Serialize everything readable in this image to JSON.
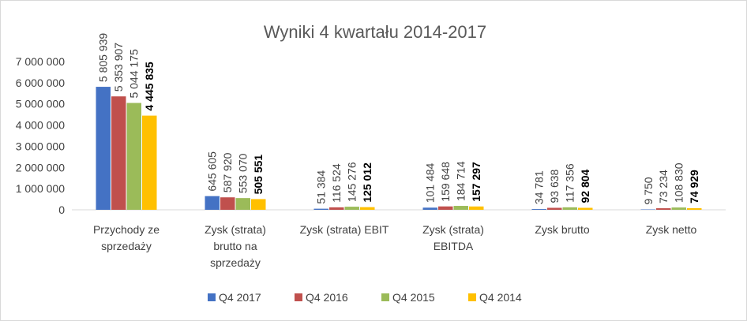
{
  "chart_data": {
    "type": "bar",
    "title": "Wyniki 4 kwartału 2014-2017",
    "xlabel": "",
    "ylabel": "",
    "ylim": [
      0,
      7000000
    ],
    "yticks": [
      0,
      1000000,
      2000000,
      3000000,
      4000000,
      5000000,
      6000000,
      7000000
    ],
    "ytick_labels": [
      "0",
      "1 000 000",
      "2 000 000",
      "3 000 000",
      "4 000 000",
      "5 000 000",
      "6 000 000",
      "7 000 000"
    ],
    "categories": [
      [
        "Przychody ze",
        "sprzedaży"
      ],
      [
        "Zysk (strata)",
        "brutto na",
        "sprzedaży"
      ],
      [
        "Zysk (strata) EBIT"
      ],
      [
        "Zysk (strata)",
        "EBITDA"
      ],
      [
        "Zysk brutto"
      ],
      [
        "Zysk netto"
      ]
    ],
    "series": [
      {
        "name": "Q4 2017",
        "color": "#4472c4",
        "values": [
          5805939,
          645605,
          51384,
          101484,
          34781,
          9750
        ],
        "labels": [
          "5 805 939",
          "645 605",
          "51 384",
          "101 484",
          "34 781",
          "9 750"
        ]
      },
      {
        "name": "Q4 2016",
        "color": "#c0504d",
        "values": [
          5353907,
          587920,
          116524,
          159648,
          93638,
          73234
        ],
        "labels": [
          "5 353 907",
          "587 920",
          "116 524",
          "159 648",
          "93 638",
          "73 234"
        ]
      },
      {
        "name": "Q4 2015",
        "color": "#9bbb59",
        "values": [
          5044175,
          553070,
          145276,
          184714,
          117356,
          108830
        ],
        "labels": [
          "5 044 175",
          "553 070",
          "145 276",
          "184 714",
          "117 356",
          "108 830"
        ]
      },
      {
        "name": "Q4 2014",
        "color": "#ffc000",
        "values": [
          4445835,
          505551,
          125012,
          157297,
          92804,
          74929
        ],
        "labels": [
          "4 445 835",
          "505 551",
          "125 012",
          "157 297",
          "92 804",
          "74 929"
        ]
      }
    ],
    "data_labels_bold_series": [
      "Q4 2014"
    ],
    "legend_position": "bottom",
    "grid": false
  }
}
